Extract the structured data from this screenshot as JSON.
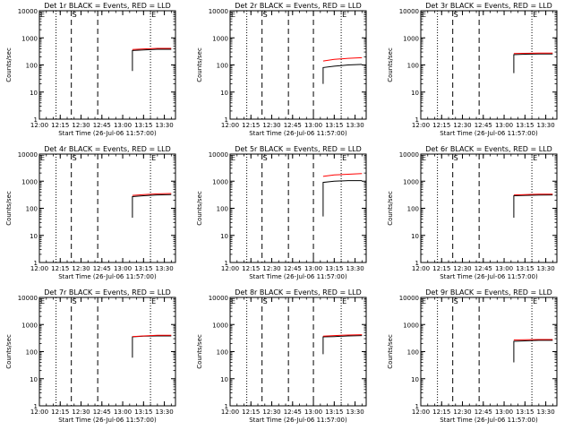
{
  "chart_data": [
    {
      "type": "line",
      "title": "Det 1r BLACK = Events, RED = LLD",
      "xlabel": "Start Time (26-Jul-06 11:57:00)",
      "ylabel": "Counts/sec",
      "x_tick_labels": [
        "12:00",
        "12:15",
        "12:30",
        "12:45",
        "13:00",
        "13:15",
        "13:30"
      ],
      "y_tick_labels": [
        "1",
        "10",
        "100",
        "1000",
        "10000"
      ],
      "yscale": "log",
      "ylim": [
        1,
        10000
      ],
      "xlim": [
        "12:00",
        "13:38"
      ],
      "markers": [
        {
          "label": "E",
          "time": "12:00"
        },
        {
          "label": "S",
          "time": "12:23"
        },
        {
          "label": "E",
          "time": "13:20"
        }
      ],
      "dotted_lines": [
        "12:12",
        "13:20"
      ],
      "dashed_lines": [
        "12:23",
        "12:42"
      ],
      "series": [
        {
          "name": "Events",
          "color": "#000000",
          "x": [
            "13:07",
            "13:07",
            "13:15",
            "13:25",
            "13:35"
          ],
          "y": [
            60,
            340,
            360,
            380,
            380
          ]
        },
        {
          "name": "LLD",
          "color": "#ff0000",
          "x": [
            "13:07",
            "13:15",
            "13:25",
            "13:35"
          ],
          "y": [
            370,
            390,
            410,
            410
          ]
        }
      ]
    },
    {
      "type": "line",
      "title": "Det 2r BLACK = Events, RED = LLD",
      "xlabel": "Start Time (26-Jul-06 11:57:00)",
      "ylabel": "Counts/sec",
      "x_tick_labels": [
        "12:00",
        "12:15",
        "12:30",
        "12:45",
        "13:00",
        "13:15",
        "13:30"
      ],
      "y_tick_labels": [
        "1",
        "10",
        "100",
        "1000",
        "10000"
      ],
      "yscale": "log",
      "ylim": [
        1,
        10000
      ],
      "xlim": [
        "12:00",
        "13:38"
      ],
      "markers": [
        {
          "label": "E",
          "time": "12:00"
        },
        {
          "label": "S",
          "time": "12:23"
        },
        {
          "label": "E",
          "time": "13:20"
        }
      ],
      "dotted_lines": [
        "12:12",
        "13:20"
      ],
      "dashed_lines": [
        "12:23",
        "12:42",
        "13:00"
      ],
      "series": [
        {
          "name": "Events",
          "color": "#000000",
          "x": [
            "13:07",
            "13:07",
            "13:15",
            "13:25",
            "13:35"
          ],
          "y": [
            20,
            80,
            90,
            100,
            105
          ]
        },
        {
          "name": "LLD",
          "color": "#ff0000",
          "x": [
            "13:07",
            "13:15",
            "13:25",
            "13:35"
          ],
          "y": [
            140,
            160,
            175,
            185
          ]
        }
      ]
    },
    {
      "type": "line",
      "title": "Det 3r BLACK = Events, RED = LLD",
      "xlabel": "Start Time (26-Jul-06 11:57:00)",
      "ylabel": "Counts/sec",
      "x_tick_labels": [
        "12:00",
        "12:15",
        "12:30",
        "12:45",
        "13:00",
        "13:15",
        "13:30"
      ],
      "y_tick_labels": [
        "1",
        "10",
        "100",
        "1000",
        "10000"
      ],
      "yscale": "log",
      "ylim": [
        1,
        10000
      ],
      "xlim": [
        "12:00",
        "13:38"
      ],
      "markers": [
        {
          "label": "E",
          "time": "12:00"
        },
        {
          "label": "S",
          "time": "12:23"
        },
        {
          "label": "E",
          "time": "13:20"
        }
      ],
      "dotted_lines": [
        "12:12",
        "13:20"
      ],
      "dashed_lines": [
        "12:23",
        "12:42"
      ],
      "series": [
        {
          "name": "Events",
          "color": "#000000",
          "x": [
            "13:07",
            "13:07",
            "13:15",
            "13:25",
            "13:35"
          ],
          "y": [
            50,
            240,
            250,
            255,
            255
          ]
        },
        {
          "name": "LLD",
          "color": "#ff0000",
          "x": [
            "13:07",
            "13:15",
            "13:25",
            "13:35"
          ],
          "y": [
            265,
            270,
            275,
            275
          ]
        }
      ]
    },
    {
      "type": "line",
      "title": "Det 4r BLACK = Events, RED = LLD",
      "xlabel": "Start Time (26-Jul-06 11:57:00)",
      "ylabel": "Counts/sec",
      "x_tick_labels": [
        "12:00",
        "12:15",
        "12:30",
        "12:45",
        "13:00",
        "13:15",
        "13:30"
      ],
      "y_tick_labels": [
        "1",
        "10",
        "100",
        "1000",
        "10000"
      ],
      "yscale": "log",
      "ylim": [
        1,
        10000
      ],
      "xlim": [
        "12:00",
        "13:38"
      ],
      "markers": [
        {
          "label": "E",
          "time": "12:00"
        },
        {
          "label": "S",
          "time": "12:23"
        },
        {
          "label": "E",
          "time": "13:20"
        }
      ],
      "dotted_lines": [
        "12:12",
        "13:20"
      ],
      "dashed_lines": [
        "12:23",
        "12:42"
      ],
      "series": [
        {
          "name": "Events",
          "color": "#000000",
          "x": [
            "13:07",
            "13:07",
            "13:15",
            "13:25",
            "13:35"
          ],
          "y": [
            45,
            270,
            290,
            310,
            320
          ]
        },
        {
          "name": "LLD",
          "color": "#ff0000",
          "x": [
            "13:07",
            "13:15",
            "13:25",
            "13:35"
          ],
          "y": [
            300,
            320,
            340,
            350
          ]
        }
      ]
    },
    {
      "type": "line",
      "title": "Det 5r BLACK = Events, RED = LLD",
      "xlabel": "Start Time (26-Jul-06 11:57:00)",
      "ylabel": "Counts/sec",
      "x_tick_labels": [
        "12:00",
        "12:15",
        "12:30",
        "12:45",
        "13:00",
        "13:15",
        "13:30"
      ],
      "y_tick_labels": [
        "1",
        "10",
        "100",
        "1000",
        "10000"
      ],
      "yscale": "log",
      "ylim": [
        1,
        10000
      ],
      "xlim": [
        "12:00",
        "13:38"
      ],
      "markers": [
        {
          "label": "E",
          "time": "12:00"
        },
        {
          "label": "S",
          "time": "12:23"
        },
        {
          "label": "E",
          "time": "13:20"
        }
      ],
      "dotted_lines": [
        "12:12",
        "13:20"
      ],
      "dashed_lines": [
        "12:23",
        "12:42",
        "13:00"
      ],
      "series": [
        {
          "name": "Events",
          "color": "#000000",
          "x": [
            "13:07",
            "13:07",
            "13:15",
            "13:25",
            "13:35"
          ],
          "y": [
            50,
            900,
            1000,
            1050,
            1050
          ]
        },
        {
          "name": "LLD",
          "color": "#ff0000",
          "x": [
            "13:07",
            "13:15",
            "13:25",
            "13:35"
          ],
          "y": [
            1500,
            1700,
            1800,
            1900
          ]
        }
      ]
    },
    {
      "type": "line",
      "title": "Det 6r BLACK = Events, RED = LLD",
      "xlabel": "Start Time (26-Jul-06 11:57:00)",
      "ylabel": "Counts/sec",
      "x_tick_labels": [
        "12:00",
        "12:15",
        "12:30",
        "12:45",
        "13:00",
        "13:15",
        "13:30"
      ],
      "y_tick_labels": [
        "1",
        "10",
        "100",
        "1000",
        "10000"
      ],
      "yscale": "log",
      "ylim": [
        1,
        10000
      ],
      "xlim": [
        "12:00",
        "13:38"
      ],
      "markers": [
        {
          "label": "E",
          "time": "12:00"
        },
        {
          "label": "S",
          "time": "12:23"
        },
        {
          "label": "E",
          "time": "13:20"
        }
      ],
      "dotted_lines": [
        "12:12",
        "13:20"
      ],
      "dashed_lines": [
        "12:23",
        "12:42"
      ],
      "series": [
        {
          "name": "Events",
          "color": "#000000",
          "x": [
            "13:07",
            "13:07",
            "13:15",
            "13:25",
            "13:35"
          ],
          "y": [
            45,
            290,
            300,
            305,
            310
          ]
        },
        {
          "name": "LLD",
          "color": "#ff0000",
          "x": [
            "13:07",
            "13:15",
            "13:25",
            "13:35"
          ],
          "y": [
            310,
            320,
            330,
            330
          ]
        }
      ]
    },
    {
      "type": "line",
      "title": "Det 7r BLACK = Events, RED = LLD",
      "xlabel": "Start Time (26-Jul-06 11:57:00)",
      "ylabel": "Counts/sec",
      "x_tick_labels": [
        "12:00",
        "12:15",
        "12:30",
        "12:45",
        "13:00",
        "13:15",
        "13:30"
      ],
      "y_tick_labels": [
        "1",
        "10",
        "100",
        "1000",
        "10000"
      ],
      "yscale": "log",
      "ylim": [
        1,
        10000
      ],
      "xlim": [
        "12:00",
        "13:38"
      ],
      "markers": [
        {
          "label": "E",
          "time": "12:00"
        },
        {
          "label": "S",
          "time": "12:23"
        },
        {
          "label": "E",
          "time": "13:20"
        }
      ],
      "dotted_lines": [
        "12:12",
        "13:20"
      ],
      "dashed_lines": [
        "12:23",
        "12:42"
      ],
      "series": [
        {
          "name": "Events",
          "color": "#000000",
          "x": [
            "13:07",
            "13:07",
            "13:15",
            "13:25",
            "13:35"
          ],
          "y": [
            60,
            350,
            370,
            380,
            380
          ]
        },
        {
          "name": "LLD",
          "color": "#ff0000",
          "x": [
            "13:07",
            "13:15",
            "13:25",
            "13:35"
          ],
          "y": [
            360,
            380,
            400,
            400
          ]
        }
      ]
    },
    {
      "type": "line",
      "title": "Det 8r BLACK = Events, RED = LLD",
      "xlabel": "Start Time (26-Jul-06 11:57:00)",
      "ylabel": "Counts/sec",
      "x_tick_labels": [
        "12:00",
        "12:15",
        "12:30",
        "12:45",
        "13:00",
        "13:15",
        "13:30"
      ],
      "y_tick_labels": [
        "1",
        "10",
        "100",
        "1000",
        "10000"
      ],
      "yscale": "log",
      "ylim": [
        1,
        10000
      ],
      "xlim": [
        "12:00",
        "13:38"
      ],
      "markers": [
        {
          "label": "E",
          "time": "12:00"
        },
        {
          "label": "S",
          "time": "12:23"
        },
        {
          "label": "E",
          "time": "13:20"
        }
      ],
      "dotted_lines": [
        "12:12",
        "13:20"
      ],
      "dashed_lines": [
        "12:23",
        "12:42",
        "13:00"
      ],
      "series": [
        {
          "name": "Events",
          "color": "#000000",
          "x": [
            "13:07",
            "13:07",
            "13:15",
            "13:25",
            "13:35"
          ],
          "y": [
            80,
            350,
            360,
            380,
            390
          ]
        },
        {
          "name": "LLD",
          "color": "#ff0000",
          "x": [
            "13:07",
            "13:15",
            "13:25",
            "13:35"
          ],
          "y": [
            370,
            390,
            410,
            420
          ]
        }
      ]
    },
    {
      "type": "line",
      "title": "Det 9r BLACK = Events, RED = LLD",
      "xlabel": "Start Time (26-Jul-06 11:57:00)",
      "ylabel": "Counts/sec",
      "x_tick_labels": [
        "12:00",
        "12:15",
        "12:30",
        "12:45",
        "13:00",
        "13:15",
        "13:30"
      ],
      "y_tick_labels": [
        "1",
        "10",
        "100",
        "1000",
        "10000"
      ],
      "yscale": "log",
      "ylim": [
        1,
        10000
      ],
      "xlim": [
        "12:00",
        "13:38"
      ],
      "markers": [
        {
          "label": "E",
          "time": "12:00"
        },
        {
          "label": "S",
          "time": "12:23"
        },
        {
          "label": "E",
          "time": "13:20"
        }
      ],
      "dotted_lines": [
        "12:12",
        "13:20"
      ],
      "dashed_lines": [
        "12:23",
        "12:42"
      ],
      "series": [
        {
          "name": "Events",
          "color": "#000000",
          "x": [
            "13:07",
            "13:07",
            "13:15",
            "13:25",
            "13:35"
          ],
          "y": [
            40,
            240,
            250,
            260,
            260
          ]
        },
        {
          "name": "LLD",
          "color": "#ff0000",
          "x": [
            "13:07",
            "13:15",
            "13:25",
            "13:35"
          ],
          "y": [
            270,
            275,
            280,
            280
          ]
        }
      ]
    }
  ]
}
